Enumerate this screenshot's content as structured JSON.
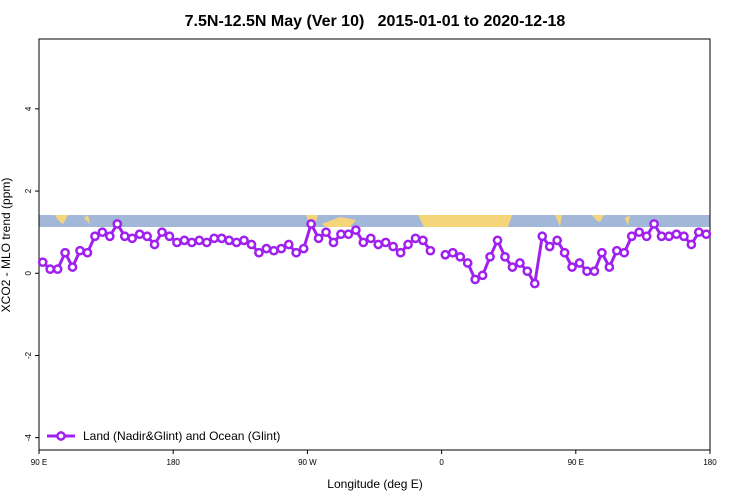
{
  "chart_data": {
    "type": "line",
    "title": "7.5N-12.5N May (Ver 10)   2015-01-01 to 2020-12-18",
    "x_label": "Longitude (deg E)",
    "y_label": "XCO2 - MLO trend (ppm)",
    "xlim": [
      90,
      540
    ],
    "xticks": [
      {
        "value": 90,
        "label": "90 E"
      },
      {
        "value": 180,
        "label": "180"
      },
      {
        "value": 270,
        "label": "90 W"
      },
      {
        "value": 360,
        "label": "0"
      },
      {
        "value": 450,
        "label": "90 E"
      },
      {
        "value": 540,
        "label": "180"
      }
    ],
    "ylim": [
      -4.3,
      5.7
    ],
    "yticks": [
      -4,
      -2,
      0,
      2,
      4
    ],
    "legend": "bottom-left",
    "x": [
      92.5,
      97.5,
      102.5,
      107.5,
      112.5,
      117.5,
      122.5,
      127.5,
      132.5,
      137.5,
      142.5,
      147.5,
      152.5,
      157.5,
      162.5,
      167.5,
      172.5,
      177.5,
      182.5,
      187.5,
      192.5,
      197.5,
      202.5,
      207.5,
      212.5,
      217.5,
      222.5,
      227.5,
      232.5,
      237.5,
      242.5,
      247.5,
      252.5,
      257.5,
      262.5,
      267.5,
      272.5,
      277.5,
      282.5,
      287.5,
      292.5,
      297.5,
      302.5,
      307.5,
      312.5,
      317.5,
      322.5,
      327.5,
      332.5,
      337.5,
      342.5,
      347.5,
      352.5,
      357.5,
      362.5,
      367.5,
      372.5,
      377.5,
      382.5,
      387.5,
      392.5,
      397.5,
      402.5,
      407.5,
      412.5,
      417.5,
      422.5,
      427.5,
      432.5,
      437.5,
      442.5,
      447.5,
      452.5,
      457.5,
      462.5,
      467.5,
      472.5,
      477.5,
      482.5,
      487.5,
      492.5,
      497.5,
      502.5,
      507.5,
      512.5,
      517.5,
      522.5,
      527.5,
      532.5,
      537.5
    ],
    "series": [
      {
        "name": "Land (Nadir&Glint) and Ocean (Glint)",
        "color": "#a020f0",
        "values": [
          0.27,
          0.1,
          0.1,
          0.5,
          0.15,
          0.55,
          0.5,
          0.9,
          1.0,
          0.9,
          1.2,
          0.9,
          0.85,
          0.95,
          0.9,
          0.7,
          1.0,
          0.9,
          0.75,
          0.8,
          0.75,
          0.8,
          0.75,
          0.85,
          0.85,
          0.8,
          0.75,
          0.8,
          0.7,
          0.5,
          0.6,
          0.55,
          0.6,
          0.7,
          0.5,
          0.6,
          1.2,
          0.85,
          1.0,
          0.75,
          0.95,
          0.95,
          1.05,
          0.75,
          0.85,
          0.7,
          0.75,
          0.65,
          0.5,
          0.7,
          0.85,
          0.8,
          0.55,
          null,
          0.45,
          0.5,
          0.4,
          0.25,
          -0.15,
          -0.05,
          0.4,
          0.8,
          0.4,
          0.15,
          0.25,
          0.05,
          -0.25,
          0.9,
          0.65,
          0.8,
          0.5,
          0.15,
          0.25,
          0.05,
          0.05,
          0.5,
          0.15,
          0.55,
          0.5,
          0.9,
          1.0,
          0.9,
          1.2,
          0.9,
          0.9,
          0.95,
          0.9,
          0.7,
          1.0,
          0.95
        ]
      }
    ]
  }
}
